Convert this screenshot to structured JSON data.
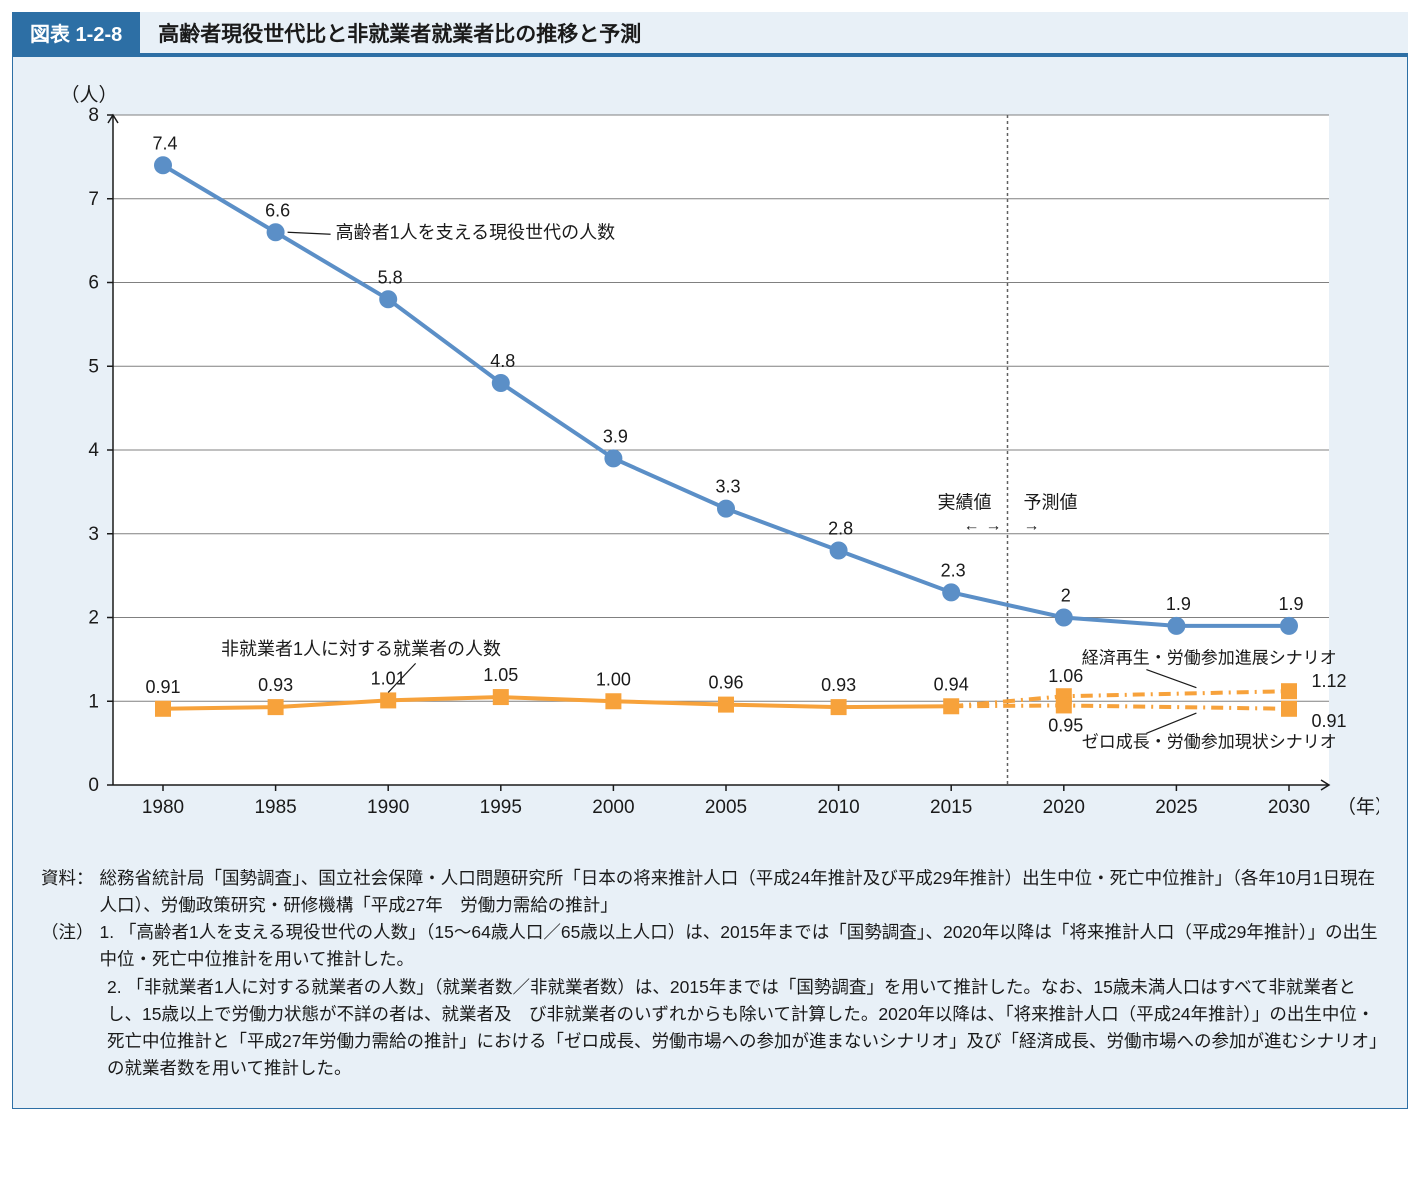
{
  "header": {
    "badge": "図表 1-2-8",
    "title": "高齢者現役世代比と非就業者就業者比の推移と予測"
  },
  "chart": {
    "type": "line",
    "background_color": "#e8f0f7",
    "plot_background_color": "#ffffff",
    "border_color": "#2d6fa5",
    "grid_color": "#808080",
    "axis_color": "#1a1a1a",
    "label_color": "#1a1a1a",
    "y_axis": {
      "title": "（人）",
      "min": 0,
      "max": 8,
      "step": 1,
      "ticks": [
        0,
        1,
        2,
        3,
        4,
        5,
        6,
        7,
        8
      ]
    },
    "x_axis": {
      "title": "（年）",
      "categories": [
        "1980",
        "1985",
        "1990",
        "1995",
        "2000",
        "2005",
        "2010",
        "2015",
        "2020",
        "2025",
        "2030"
      ]
    },
    "divider": {
      "between_index": 7,
      "label_left": "実績値",
      "label_right": "予測値",
      "arrow_left": "↔",
      "arrow_right": "→",
      "color": "#606060",
      "dash": "3,3"
    },
    "series_blue": {
      "name": "高齢者1人を支える現役世代の人数",
      "color": "#5b8fc7",
      "marker": "circle",
      "marker_size": 9,
      "line_width": 4,
      "values": [
        7.4,
        6.6,
        5.8,
        4.8,
        3.9,
        3.3,
        2.8,
        2.3,
        2,
        1.9,
        1.9
      ],
      "labels": [
        "7.4",
        "6.6",
        "5.8",
        "4.8",
        "3.9",
        "3.3",
        "2.8",
        "2.3",
        "2",
        "1.9",
        "1.9"
      ]
    },
    "series_orange": {
      "name": "非就業者1人に対する就業者の人数",
      "color": "#f7a23b",
      "marker": "square",
      "marker_size": 16,
      "line_width": 4,
      "values_actual": [
        0.91,
        0.93,
        1.01,
        1.05,
        1.0,
        0.96,
        0.93,
        0.94
      ],
      "labels_actual": [
        "0.91",
        "0.93",
        "1.01",
        "1.05",
        "1.00",
        "0.96",
        "0.93",
        "0.94"
      ],
      "scenario_high": {
        "name": "経済再生・労働参加進展シナリオ",
        "values": [
          1.06,
          null,
          1.12
        ],
        "labels": [
          "1.06",
          "",
          "1.12"
        ],
        "dash": "12,6,2,6"
      },
      "scenario_low": {
        "name": "ゼロ成長・労働参加現状シナリオ",
        "values": [
          0.95,
          null,
          0.91
        ],
        "labels": [
          "0.95",
          "",
          "0.91"
        ],
        "dash": "12,6,2,6"
      }
    },
    "annotation_font_size": 18,
    "axis_font_size": 19
  },
  "notes": {
    "source_label": "資料：",
    "source_text": "総務省統計局「国勢調査」、国立社会保障・人口問題研究所「日本の将来推計人口（平成24年推計及び平成29年推計）出生中位・死亡中位推計」（各年10月1日現在人口）、労働政策研究・研修機構「平成27年　労働力需給の推計」",
    "note_label": "（注）",
    "note1": "1. 「高齢者1人を支える現役世代の人数」（15〜64歳人口／65歳以上人口）は、2015年までは「国勢調査」、2020年以降は「将来推計人口（平成29年推計）」の出生中位・死亡中位推計を用いて推計した。",
    "note2": "2. 「非就業者1人に対する就業者の人数」（就業者数／非就業者数）は、2015年までは「国勢調査」を用いて推計した。なお、15歳未満人口はすべて非就業者とし、15歳以上で労働力状態が不詳の者は、就業者及　び非就業者のいずれからも除いて計算した。2020年以降は、「将来推計人口（平成24年推計）」の出生中位・死亡中位推計と「平成27年労働力需給の推計」における「ゼロ成長、労働市場への参加が進まないシナリオ」及び「経済成長、労働市場への参加が進むシナリオ」の就業者数を用いて推計した。"
  }
}
